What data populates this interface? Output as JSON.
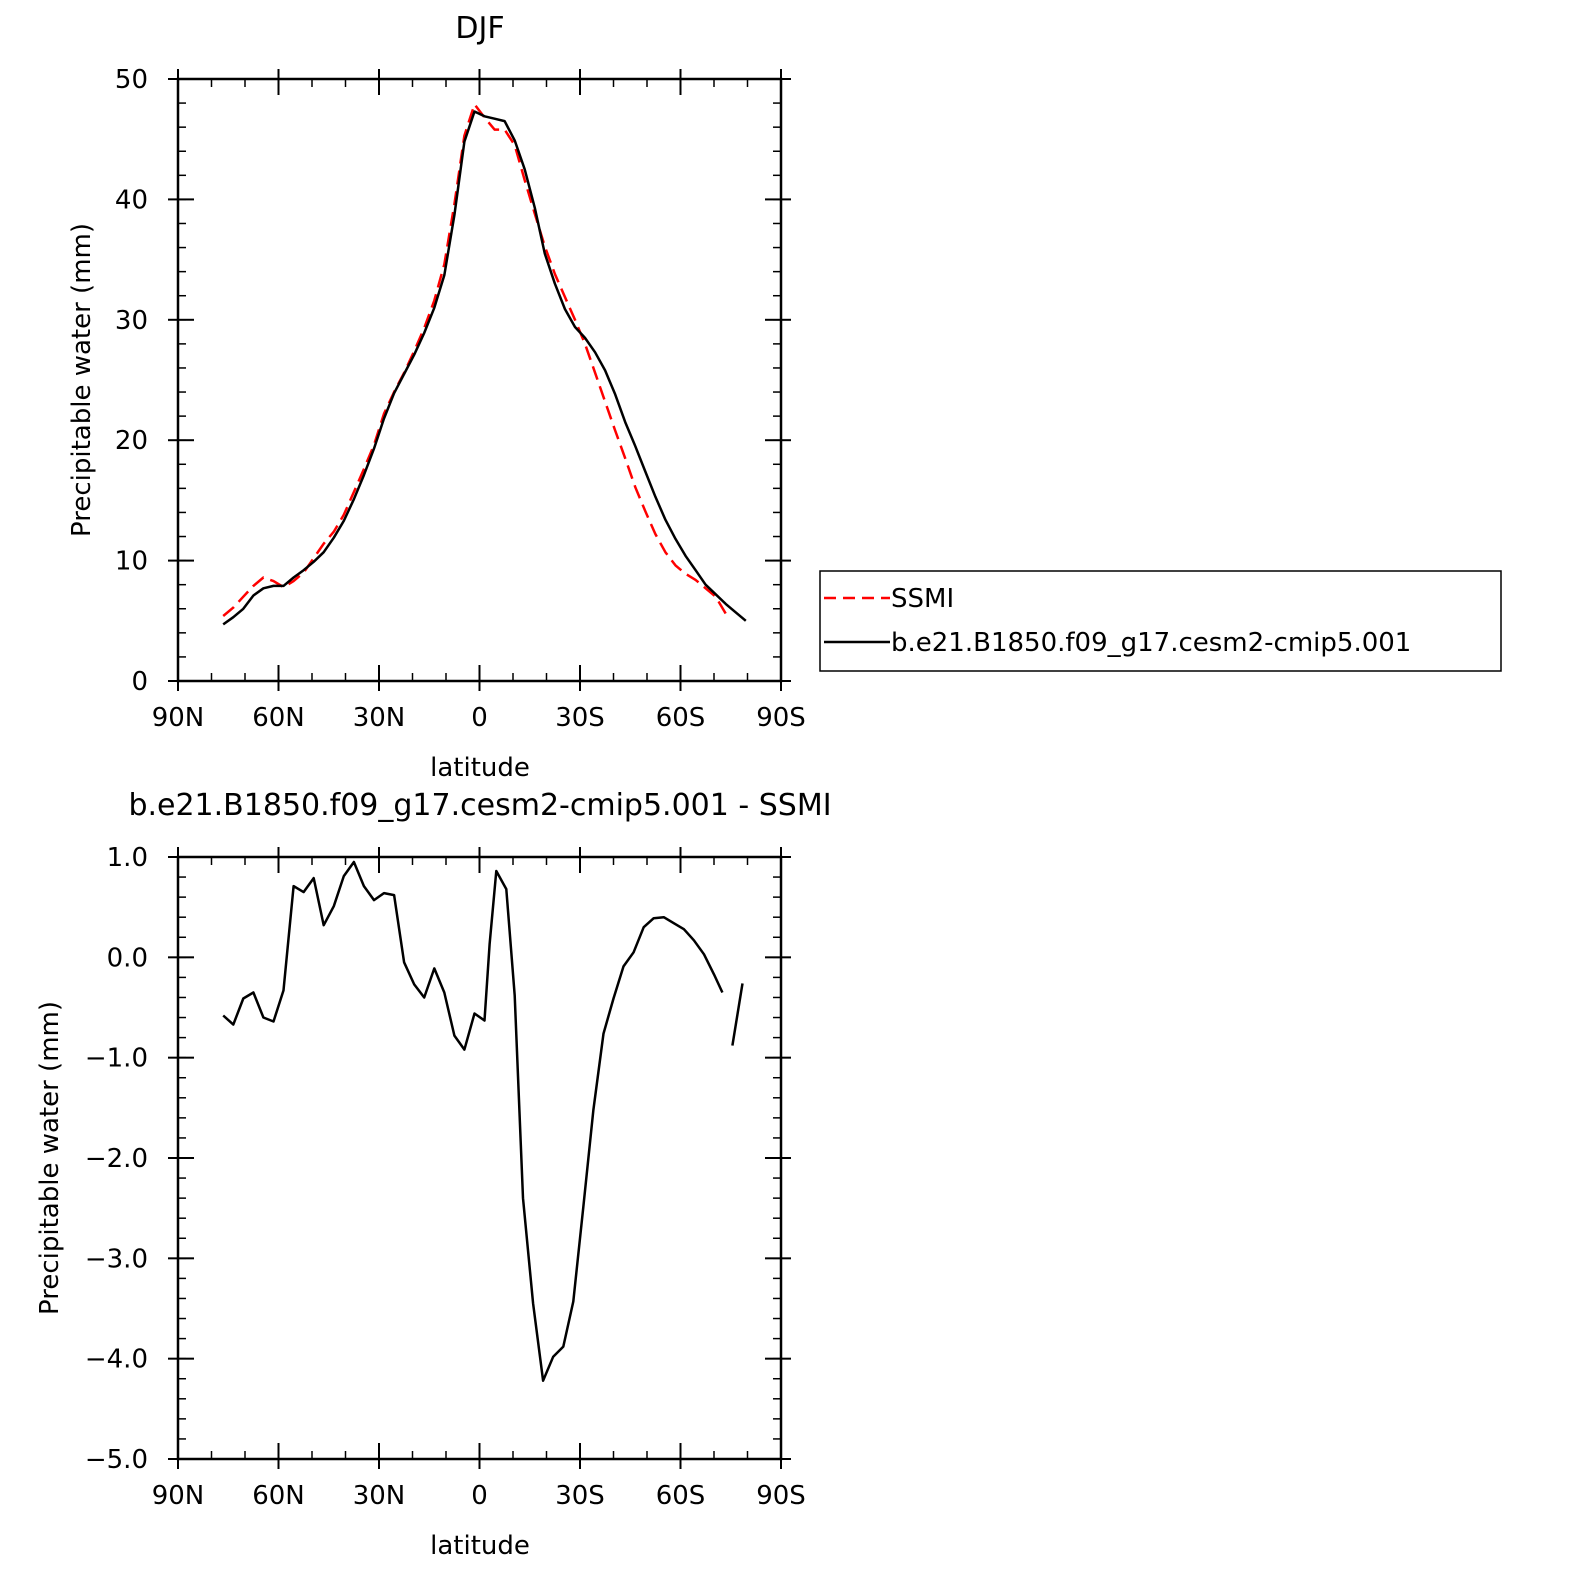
{
  "chart_data": [
    {
      "type": "line",
      "title": "DJF",
      "xlabel": "latitude",
      "ylabel": "Precipitable water (mm)",
      "xlim": [
        90,
        -90
      ],
      "ylim": [
        0,
        50
      ],
      "x_ticks": [
        90,
        60,
        30,
        0,
        -30,
        -60,
        -90
      ],
      "x_tick_labels": [
        "90N",
        "60N",
        "30N",
        "0",
        "30S",
        "60S",
        "90S"
      ],
      "y_ticks": [
        0,
        10,
        20,
        30,
        40,
        50
      ],
      "y_tick_labels": [
        "0",
        "10",
        "20",
        "30",
        "40",
        "50"
      ],
      "legend": {
        "placement": "right",
        "entries": [
          "SSMI",
          "b.e21.B1850.f09_g17.cesm2-cmip5.001"
        ]
      },
      "series": [
        {
          "name": "SSMI",
          "color": "#ff0000",
          "style": "dashed",
          "points": [
            [
              76.5,
              5.4
            ],
            [
              73.5,
              6.1
            ],
            [
              70.5,
              7.0
            ],
            [
              67.5,
              7.9
            ],
            [
              64.5,
              8.6
            ],
            [
              61.5,
              8.3
            ],
            [
              58.5,
              7.8
            ],
            [
              55.5,
              8.3
            ],
            [
              52.5,
              9.0
            ],
            [
              49.5,
              10.2
            ],
            [
              46.5,
              11.4
            ],
            [
              43.5,
              12.4
            ],
            [
              40.5,
              13.8
            ],
            [
              37.5,
              15.7
            ],
            [
              34.5,
              17.6
            ],
            [
              31.5,
              19.6
            ],
            [
              28.5,
              22.2
            ],
            [
              25.5,
              24.0
            ],
            [
              22.5,
              25.6
            ],
            [
              19.5,
              27.4
            ],
            [
              16.5,
              29.3
            ],
            [
              13.5,
              31.6
            ],
            [
              10.5,
              34.6
            ],
            [
              7.5,
              39.6
            ],
            [
              4.5,
              45.3
            ],
            [
              1.5,
              47.9
            ],
            [
              -1.5,
              46.8
            ],
            [
              -4.5,
              45.8
            ],
            [
              -7.5,
              45.8
            ],
            [
              -10.5,
              44.5
            ],
            [
              -13.5,
              41.6
            ],
            [
              -16.5,
              38.8
            ],
            [
              -19.5,
              36.1
            ],
            [
              -22.5,
              33.8
            ],
            [
              -25.5,
              31.9
            ],
            [
              -28.5,
              30.0
            ],
            [
              -31.5,
              28.0
            ],
            [
              -34.5,
              25.6
            ],
            [
              -37.5,
              23.2
            ],
            [
              -40.5,
              20.8
            ],
            [
              -43.5,
              18.5
            ],
            [
              -46.5,
              16.1
            ],
            [
              -49.5,
              14.1
            ],
            [
              -52.5,
              12.2
            ],
            [
              -55.5,
              10.7
            ],
            [
              -58.5,
              9.6
            ],
            [
              -61.5,
              8.9
            ],
            [
              -64.5,
              8.4
            ],
            [
              -67.5,
              7.7
            ],
            [
              -70.5,
              7.0
            ],
            [
              -72,
              6.3
            ],
            [
              -73.5,
              5.6
            ]
          ]
        },
        {
          "name": "b.e21.B1850.f09_g17.cesm2-cmip5.001",
          "color": "#000000",
          "style": "solid",
          "points": [
            [
              76.5,
              4.7
            ],
            [
              73.5,
              5.3
            ],
            [
              70.5,
              6.0
            ],
            [
              67.5,
              7.1
            ],
            [
              64.5,
              7.7
            ],
            [
              61.5,
              7.9
            ],
            [
              58.5,
              7.9
            ],
            [
              55.5,
              8.6
            ],
            [
              52.5,
              9.2
            ],
            [
              49.5,
              9.9
            ],
            [
              46.5,
              10.7
            ],
            [
              43.5,
              11.9
            ],
            [
              40.5,
              13.3
            ],
            [
              37.5,
              15.1
            ],
            [
              34.5,
              17.1
            ],
            [
              31.5,
              19.3
            ],
            [
              28.5,
              21.8
            ],
            [
              25.5,
              23.9
            ],
            [
              22.5,
              25.5
            ],
            [
              19.5,
              27.1
            ],
            [
              16.5,
              28.9
            ],
            [
              13.5,
              31.0
            ],
            [
              10.5,
              33.7
            ],
            [
              7.5,
              38.7
            ],
            [
              4.5,
              44.8
            ],
            [
              1.5,
              47.3
            ],
            [
              -1.5,
              46.9
            ],
            [
              -4.5,
              46.7
            ],
            [
              -7.5,
              46.5
            ],
            [
              -10.5,
              44.9
            ],
            [
              -13.5,
              42.5
            ],
            [
              -16.5,
              39.3
            ],
            [
              -19.5,
              35.5
            ],
            [
              -22.5,
              33.0
            ],
            [
              -25.5,
              30.9
            ],
            [
              -28.5,
              29.4
            ],
            [
              -31.5,
              28.5
            ],
            [
              -34.5,
              27.3
            ],
            [
              -37.5,
              25.8
            ],
            [
              -40.5,
              23.8
            ],
            [
              -43.5,
              21.5
            ],
            [
              -46.5,
              19.5
            ],
            [
              -49.5,
              17.4
            ],
            [
              -52.5,
              15.3
            ],
            [
              -55.5,
              13.4
            ],
            [
              -58.5,
              11.8
            ],
            [
              -61.5,
              10.4
            ],
            [
              -64.5,
              9.2
            ],
            [
              -67.5,
              8.0
            ],
            [
              -70.5,
              7.2
            ],
            [
              -73.5,
              6.4
            ],
            [
              -76.5,
              5.7
            ],
            [
              -79.5,
              5.0
            ]
          ]
        }
      ]
    },
    {
      "type": "line",
      "title": "b.e21.B1850.f09_g17.cesm2-cmip5.001 - SSMI",
      "xlabel": "latitude",
      "ylabel": "Precipitable water (mm)",
      "xlim": [
        90,
        -90
      ],
      "ylim": [
        -5,
        1
      ],
      "x_ticks": [
        90,
        60,
        30,
        0,
        -30,
        -60,
        -90
      ],
      "x_tick_labels": [
        "90N",
        "60N",
        "30N",
        "0",
        "30S",
        "60S",
        "90S"
      ],
      "y_ticks": [
        1,
        0,
        -1,
        -2,
        -3,
        -4,
        -5
      ],
      "y_tick_labels": [
        "1.0",
        "0.0",
        "-1.0",
        "-2.0",
        "-3.0",
        "-4.0",
        "-5.0"
      ],
      "series": [
        {
          "name": "",
          "color": "#000000",
          "style": "solid",
          "segments": [
            [
              [
                76.5,
                -0.58
              ],
              [
                73.5,
                -0.67
              ],
              [
                70.5,
                -0.41
              ],
              [
                67.5,
                -0.35
              ],
              [
                64.5,
                -0.6
              ],
              [
                61.5,
                -0.64
              ],
              [
                58.5,
                -0.33
              ],
              [
                55.5,
                0.71
              ],
              [
                52.5,
                0.65
              ],
              [
                49.5,
                0.79
              ],
              [
                46.5,
                0.32
              ],
              [
                43.5,
                0.51
              ],
              [
                40.5,
                0.81
              ],
              [
                37.5,
                0.95
              ],
              [
                34.5,
                0.71
              ],
              [
                31.5,
                0.57
              ],
              [
                28.5,
                0.64
              ],
              [
                25.5,
                0.62
              ],
              [
                22.5,
                -0.05
              ],
              [
                19.5,
                -0.27
              ],
              [
                16.5,
                -0.4
              ],
              [
                13.5,
                -0.11
              ],
              [
                10.5,
                -0.35
              ],
              [
                7.5,
                -0.78
              ],
              [
                4.5,
                -0.92
              ],
              [
                1.5,
                -0.56
              ],
              [
                -1.5,
                -0.63
              ],
              [
                -3,
                0.13
              ],
              [
                -5,
                0.86
              ],
              [
                -8,
                0.68
              ],
              [
                -10.5,
                -0.38
              ],
              [
                -13,
                -2.4
              ],
              [
                -16,
                -3.45
              ],
              [
                -19,
                -4.22
              ],
              [
                -22,
                -3.98
              ],
              [
                -25,
                -3.88
              ],
              [
                -28,
                -3.43
              ],
              [
                -31,
                -2.48
              ],
              [
                -34,
                -1.52
              ],
              [
                -37,
                -0.76
              ],
              [
                -40,
                -0.41
              ],
              [
                -43,
                -0.09
              ],
              [
                -46,
                0.05
              ],
              [
                -49,
                0.3
              ],
              [
                -52,
                0.39
              ],
              [
                -55,
                0.4
              ],
              [
                -58,
                0.34
              ],
              [
                -61,
                0.28
              ],
              [
                -64,
                0.17
              ],
              [
                -67,
                0.03
              ],
              [
                -70,
                -0.17
              ],
              [
                -72.5,
                -0.35
              ]
            ],
            [
              [
                -75.5,
                -0.88
              ],
              [
                -78.5,
                -0.26
              ]
            ]
          ]
        }
      ]
    }
  ]
}
